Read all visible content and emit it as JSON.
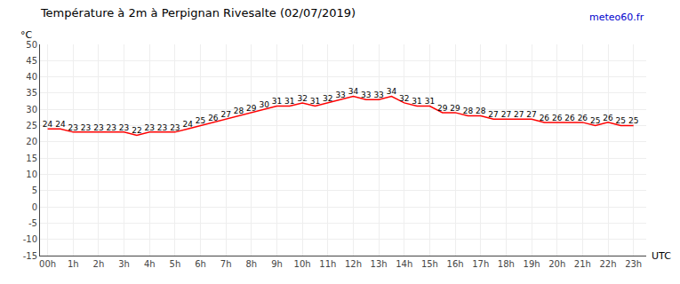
{
  "chart_data": {
    "type": "line",
    "title": "Température à 2m à Perpignan Rivesalte (02/07/2019)",
    "ylabel": "°C",
    "xlabel": "UTC",
    "annotations": [
      {
        "text": "meteo60.fr",
        "color": "#0000CC"
      }
    ],
    "x": [
      0,
      0.5,
      1,
      1.5,
      2,
      2.5,
      3,
      3.5,
      4,
      4.5,
      5,
      5.5,
      6,
      6.5,
      7,
      7.5,
      8,
      8.5,
      9,
      9.5,
      10,
      10.5,
      11,
      11.5,
      12,
      12.5,
      13,
      13.5,
      14,
      14.5,
      15,
      15.5,
      16,
      16.5,
      17,
      17.5,
      18,
      18.5,
      19,
      19.5,
      20,
      20.5,
      21,
      21.5,
      22,
      22.5,
      23
    ],
    "values": [
      24,
      24,
      23,
      23,
      23,
      23,
      23,
      22,
      23,
      23,
      23,
      24,
      25,
      26,
      27,
      28,
      29,
      30,
      31,
      31,
      32,
      31,
      32,
      33,
      34,
      33,
      33,
      34,
      32,
      31,
      31,
      29,
      29,
      28,
      28,
      27,
      27,
      27,
      27,
      26,
      26,
      26,
      26,
      25,
      26,
      25,
      25
    ],
    "color": "#FF0000",
    "data_labels": true,
    "grid": true,
    "xlim": [
      -0.3,
      23.5
    ],
    "xticks": [
      {
        "value": 0,
        "label": "00h"
      },
      {
        "value": 1,
        "label": "1h"
      },
      {
        "value": 2,
        "label": "2h"
      },
      {
        "value": 3,
        "label": "3h"
      },
      {
        "value": 4,
        "label": "4h"
      },
      {
        "value": 5,
        "label": "5h"
      },
      {
        "value": 6,
        "label": "6h"
      },
      {
        "value": 7,
        "label": "7h"
      },
      {
        "value": 8,
        "label": "8h"
      },
      {
        "value": 9,
        "label": "9h"
      },
      {
        "value": 10,
        "label": "10h"
      },
      {
        "value": 11,
        "label": "11h"
      },
      {
        "value": 12,
        "label": "12h"
      },
      {
        "value": 13,
        "label": "13h"
      },
      {
        "value": 14,
        "label": "14h"
      },
      {
        "value": 15,
        "label": "15h"
      },
      {
        "value": 16,
        "label": "16h"
      },
      {
        "value": 17,
        "label": "17h"
      },
      {
        "value": 18,
        "label": "18h"
      },
      {
        "value": 19,
        "label": "19h"
      },
      {
        "value": 20,
        "label": "20h"
      },
      {
        "value": 21,
        "label": "21h"
      },
      {
        "value": 22,
        "label": "22h"
      },
      {
        "value": 23,
        "label": "23h"
      }
    ],
    "ylim": [
      -15,
      50
    ],
    "yticks": [
      -15,
      -10,
      -5,
      0,
      5,
      10,
      15,
      20,
      25,
      30,
      35,
      40,
      45,
      50
    ]
  }
}
